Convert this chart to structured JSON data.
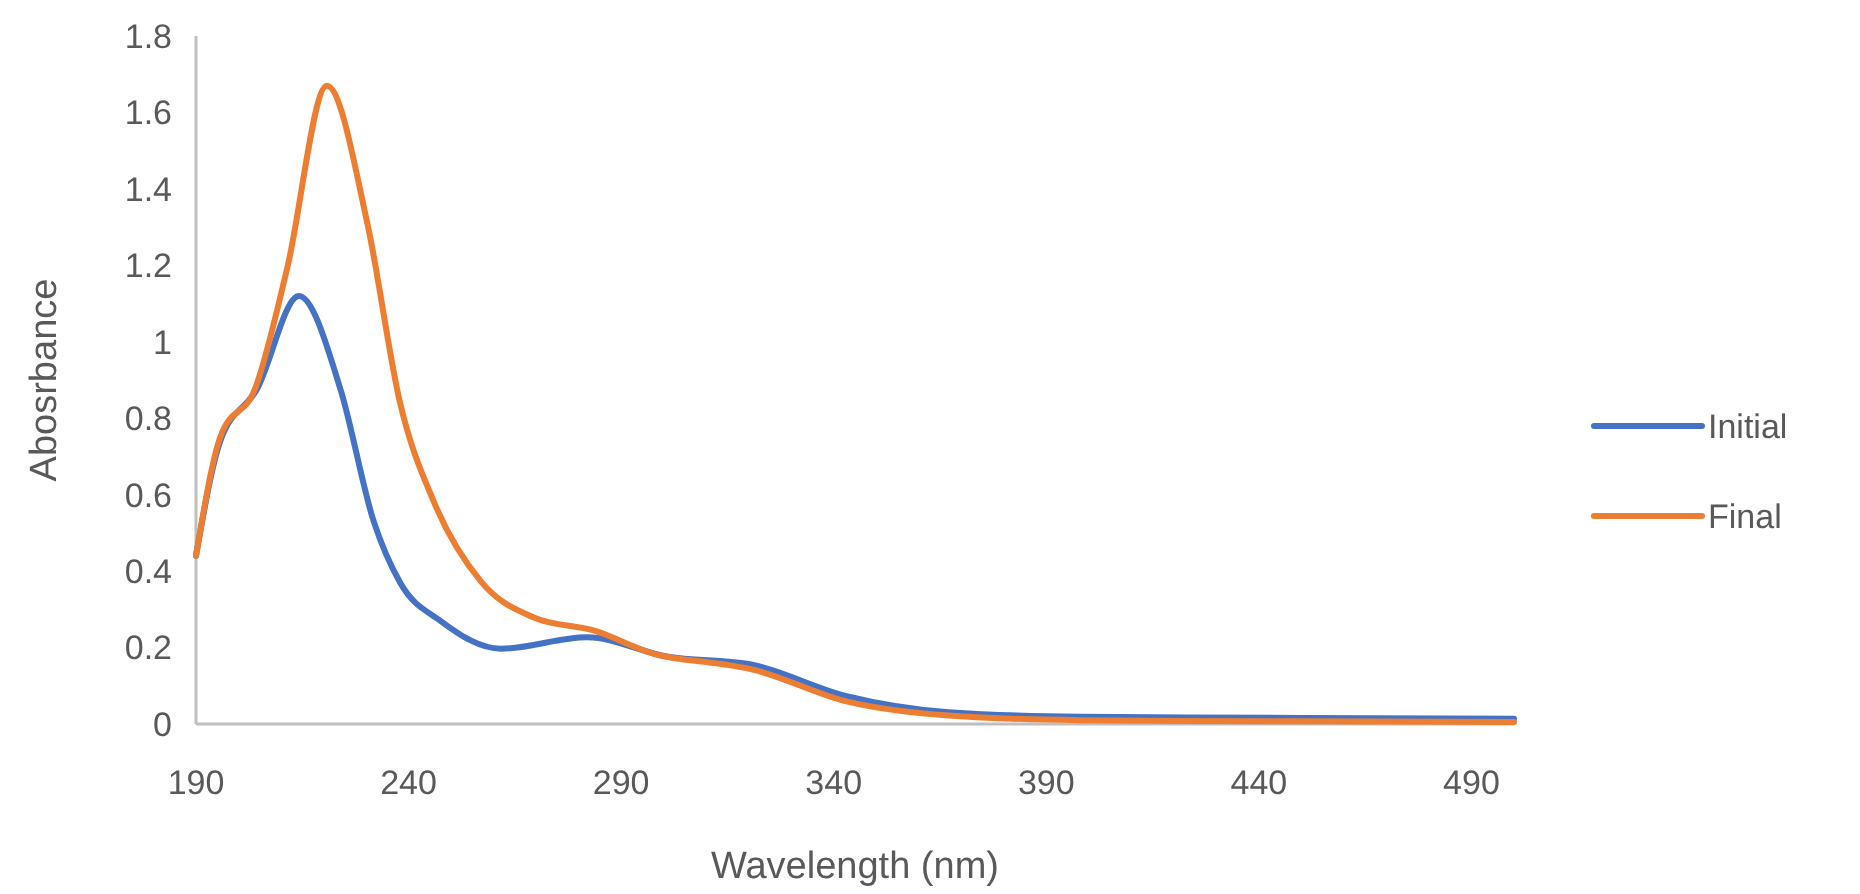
{
  "chart_data": {
    "type": "line",
    "xlabel": "Wavelength (nm)",
    "ylabel": "Abosrbance",
    "xlim": [
      190,
      500
    ],
    "xticks": [
      190,
      240,
      290,
      340,
      390,
      440,
      490
    ],
    "ylim": [
      0,
      1.8
    ],
    "yticks": [
      0,
      0.2,
      0.4,
      0.6,
      0.8,
      1,
      1.2,
      1.4,
      1.6,
      1.8
    ],
    "grid": false,
    "legend": "right",
    "marker": "none",
    "line_style": "solid",
    "series": [
      {
        "name": "Initial",
        "color": "#4472c4",
        "x": [
          190,
          195.7,
          204.3,
          214.2,
          224,
          231.8,
          238,
          247.5,
          261.7,
          282,
          301,
          320,
          343,
          367,
          398,
          450,
          500
        ],
        "values": [
          0.44,
          0.74,
          0.875,
          1.12,
          0.875,
          0.53,
          0.37,
          0.27,
          0.197,
          0.227,
          0.176,
          0.157,
          0.073,
          0.031,
          0.019,
          0.016,
          0.014
        ]
      },
      {
        "name": "Final",
        "color": "#ed7d31",
        "x": [
          190,
          195.7,
          204,
          211.4,
          220.8,
          230.3,
          238,
          246,
          257,
          269.6,
          283.7,
          297.9,
          313.6,
          320,
          343,
          367,
          398,
          450,
          500
        ],
        "values": [
          0.44,
          0.75,
          0.88,
          1.19,
          1.67,
          1.31,
          0.84,
          0.58,
          0.373,
          0.278,
          0.244,
          0.183,
          0.157,
          0.145,
          0.059,
          0.022,
          0.01,
          0.007,
          0.005
        ]
      }
    ]
  }
}
